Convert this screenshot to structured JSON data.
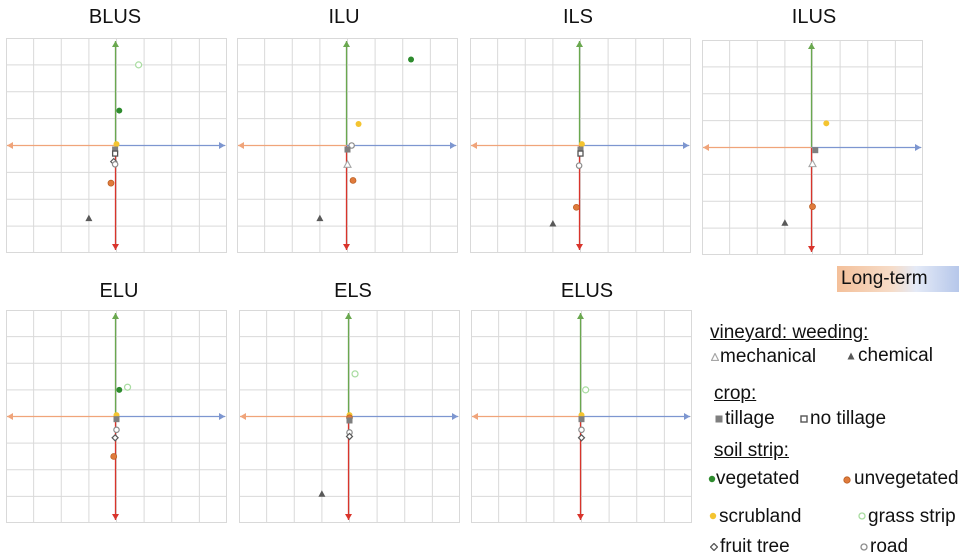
{
  "legend": {
    "long_term": "Long-term",
    "vineyard_head": "vineyard: weeding:",
    "mechanical": "mechanical",
    "chemical": "chemical",
    "crop_head": "crop:",
    "tillage": "tillage",
    "no_tillage": "no tillage",
    "soil_head": "soil strip:",
    "vegetated": "vegetated",
    "unvegetated": "unvegetated",
    "scrubland": "scrubland",
    "grass_strip": "grass strip",
    "fruit_tree": "fruit tree",
    "road": "road"
  },
  "colors": {
    "grid": "#d9d9d9",
    "up_arrow": "#6aa84f",
    "down_arrow": "#d9342b",
    "left_arrow": "#f0a47a",
    "right_arrow": "#7d96d0",
    "mechanical": "#a6a6a6",
    "chemical": "#595959",
    "tillage": "#7f7f7f",
    "vegetated": "#2e8b2e",
    "unvegetated": "#e07b3c",
    "scrubland": "#f4c430",
    "grass_strip": "#a8dca0",
    "fruit_tree": "#595959",
    "road": "#8c8c8c"
  },
  "chart_data": [
    {
      "type": "scatter",
      "title": "BLUS",
      "xlim": [
        -4,
        4
      ],
      "ylim": [
        -4,
        4
      ],
      "grid": true,
      "points": [
        {
          "cat": "grass_strip",
          "x": 0.8,
          "y": 3.0
        },
        {
          "cat": "vegetated",
          "x": 0.1,
          "y": 1.3
        },
        {
          "cat": "scrubland",
          "x": 0.0,
          "y": 0.05
        },
        {
          "cat": "tillage",
          "x": -0.05,
          "y": -0.15
        },
        {
          "cat": "no_tillage",
          "x": -0.05,
          "y": -0.3
        },
        {
          "cat": "fruit_tree",
          "x": -0.1,
          "y": -0.6
        },
        {
          "cat": "road",
          "x": -0.05,
          "y": -0.7
        },
        {
          "cat": "unvegetated",
          "x": -0.2,
          "y": -1.4
        },
        {
          "cat": "chemical",
          "x": -1.0,
          "y": -2.7
        }
      ]
    },
    {
      "type": "scatter",
      "title": "ILU",
      "xlim": [
        -4,
        4
      ],
      "ylim": [
        -4,
        4
      ],
      "grid": true,
      "points": [
        {
          "cat": "vegetated",
          "x": 2.3,
          "y": 3.2
        },
        {
          "cat": "scrubland",
          "x": 0.4,
          "y": 0.8
        },
        {
          "cat": "road",
          "x": 0.15,
          "y": 0.0
        },
        {
          "cat": "tillage",
          "x": 0.0,
          "y": -0.15
        },
        {
          "cat": "mechanical",
          "x": 0.0,
          "y": -0.7
        },
        {
          "cat": "unvegetated",
          "x": 0.2,
          "y": -1.3
        },
        {
          "cat": "chemical",
          "x": -1.0,
          "y": -2.7
        }
      ]
    },
    {
      "type": "scatter",
      "title": "ILS",
      "xlim": [
        -4,
        4
      ],
      "ylim": [
        -4,
        4
      ],
      "grid": true,
      "points": [
        {
          "cat": "scrubland",
          "x": 0.05,
          "y": 0.05
        },
        {
          "cat": "tillage",
          "x": 0.0,
          "y": -0.15
        },
        {
          "cat": "no_tillage",
          "x": 0.0,
          "y": -0.3
        },
        {
          "cat": "road",
          "x": -0.05,
          "y": -0.75
        },
        {
          "cat": "unvegetated",
          "x": -0.15,
          "y": -2.3
        },
        {
          "cat": "chemical",
          "x": -1.0,
          "y": -2.9
        }
      ]
    },
    {
      "type": "scatter",
      "title": "ILUS",
      "xlim": [
        -4,
        4
      ],
      "ylim": [
        -4,
        4
      ],
      "grid": true,
      "points": [
        {
          "cat": "scrubland",
          "x": 0.5,
          "y": 0.9
        },
        {
          "cat": "tillage",
          "x": 0.1,
          "y": -0.1
        },
        {
          "cat": "mechanical",
          "x": 0.0,
          "y": -0.6
        },
        {
          "cat": "unvegetated",
          "x": 0.0,
          "y": -2.2
        },
        {
          "cat": "chemical",
          "x": -1.0,
          "y": -2.8
        }
      ]
    },
    {
      "type": "scatter",
      "title": "ELU",
      "xlim": [
        -4,
        4
      ],
      "ylim": [
        -4,
        4
      ],
      "grid": true,
      "points": [
        {
          "cat": "grass_strip",
          "x": 0.4,
          "y": 1.1
        },
        {
          "cat": "vegetated",
          "x": 0.1,
          "y": 1.0
        },
        {
          "cat": "scrubland",
          "x": 0.0,
          "y": 0.05
        },
        {
          "cat": "tillage",
          "x": 0.0,
          "y": -0.1
        },
        {
          "cat": "road",
          "x": 0.0,
          "y": -0.5
        },
        {
          "cat": "fruit_tree",
          "x": -0.05,
          "y": -0.8
        },
        {
          "cat": "unvegetated",
          "x": -0.1,
          "y": -1.5
        }
      ]
    },
    {
      "type": "scatter",
      "title": "ELS",
      "xlim": [
        -4,
        4
      ],
      "ylim": [
        -4,
        4
      ],
      "grid": true,
      "points": [
        {
          "cat": "grass_strip",
          "x": 0.2,
          "y": 1.6
        },
        {
          "cat": "scrubland",
          "x": 0.0,
          "y": 0.05
        },
        {
          "cat": "unvegetated",
          "x": 0.0,
          "y": -0.05
        },
        {
          "cat": "tillage",
          "x": 0.0,
          "y": -0.15
        },
        {
          "cat": "road",
          "x": 0.0,
          "y": -0.6
        },
        {
          "cat": "fruit_tree",
          "x": 0.0,
          "y": -0.75
        },
        {
          "cat": "chemical",
          "x": -1.0,
          "y": -2.9
        }
      ]
    },
    {
      "type": "scatter",
      "title": "ELUS",
      "xlim": [
        -4,
        4
      ],
      "ylim": [
        -4,
        4
      ],
      "grid": true,
      "points": [
        {
          "cat": "grass_strip",
          "x": 0.15,
          "y": 1.0
        },
        {
          "cat": "scrubland",
          "x": 0.0,
          "y": 0.05
        },
        {
          "cat": "tillage",
          "x": 0.0,
          "y": -0.1
        },
        {
          "cat": "road",
          "x": 0.0,
          "y": -0.5
        },
        {
          "cat": "fruit_tree",
          "x": 0.0,
          "y": -0.8
        }
      ]
    }
  ]
}
